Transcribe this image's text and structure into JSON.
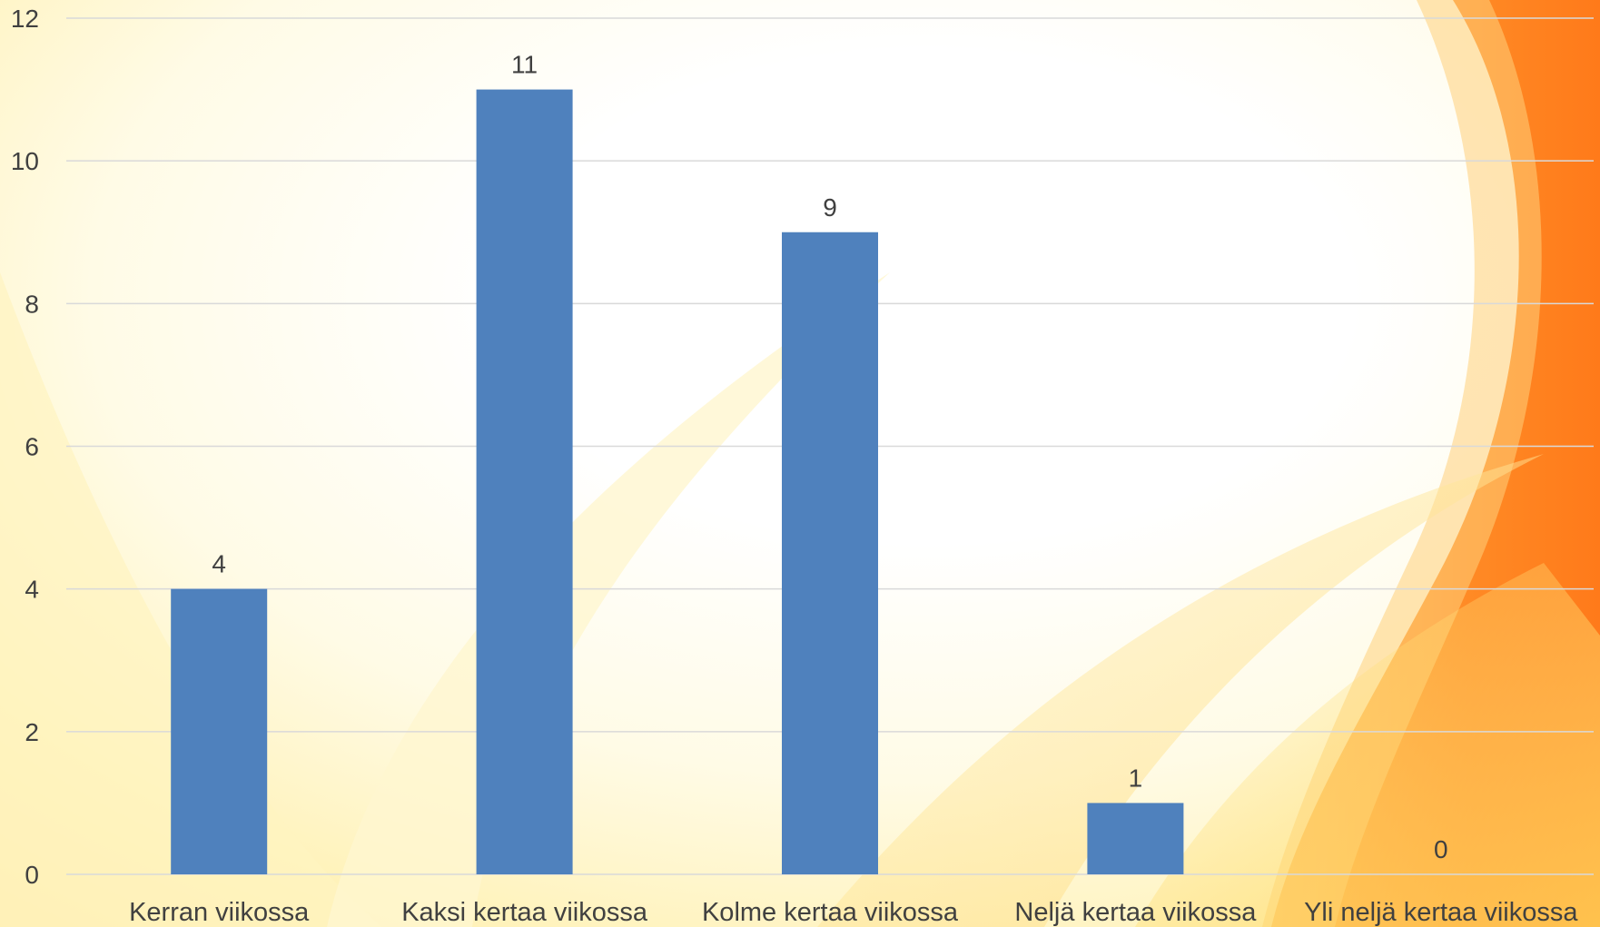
{
  "chart_data": {
    "type": "bar",
    "title": "",
    "xlabel": "",
    "ylabel": "",
    "categories": [
      "Kerran viikossa",
      "Kaksi kertaa viikossa",
      "Kolme kertaa viikossa",
      "Neljä kertaa viikossa",
      "Yli neljä kertaa viikossa"
    ],
    "values": [
      4,
      11,
      9,
      1,
      0
    ],
    "value_labels": [
      "4",
      "11",
      "9",
      "1",
      "0"
    ],
    "ylim": [
      0,
      12
    ],
    "yticks": [
      0,
      2,
      4,
      6,
      8,
      10,
      12
    ],
    "ytick_labels": [
      "0",
      "2",
      "4",
      "6",
      "8",
      "10",
      "12"
    ],
    "grid": true,
    "legend": "none",
    "bar_color": "#4f81bd",
    "gridline_color": "#d9d9d9",
    "text_color": "#404040"
  },
  "background": {
    "style": "warm sunburst",
    "colors": [
      "#ffffff",
      "#fff7c8",
      "#ffe27a",
      "#ffb43c",
      "#ff7a1a"
    ]
  }
}
